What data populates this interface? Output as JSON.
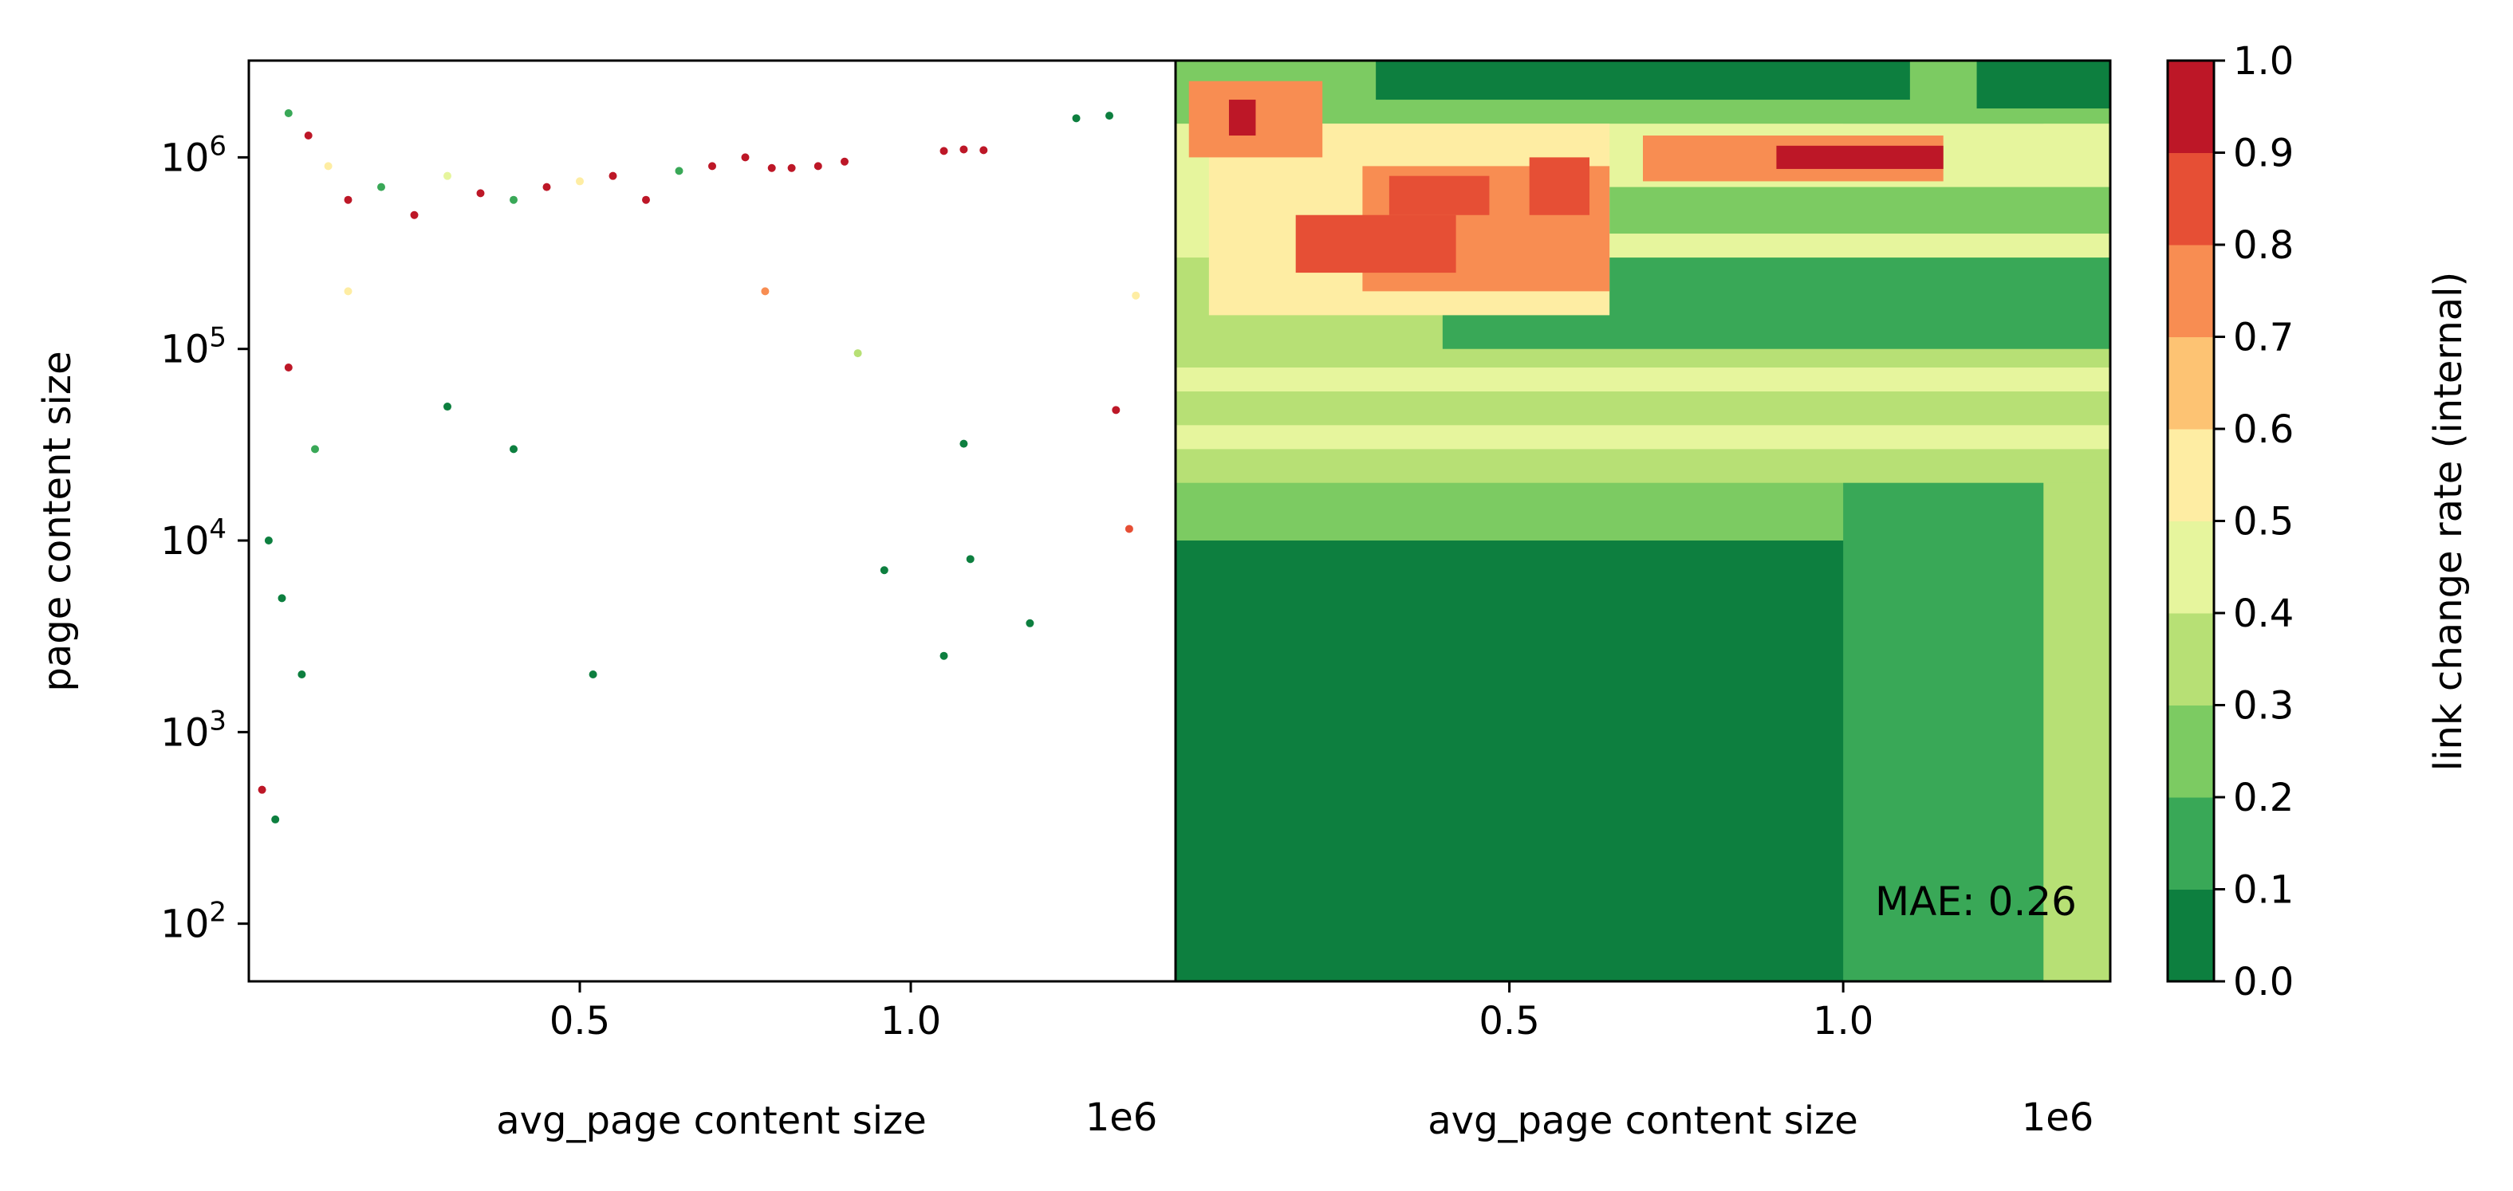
{
  "chart_data": [
    {
      "type": "scatter",
      "xlabel": "avg_page content size",
      "x_offset_label": "1e6",
      "ylabel": "page content size",
      "x_scale": "linear",
      "y_scale": "log",
      "xlim": [
        0,
        1400000
      ],
      "ylim": [
        50,
        3200000
      ],
      "x_ticks": [
        {
          "value": 500000,
          "label": "0.5"
        },
        {
          "value": 1000000,
          "label": "1.0"
        }
      ],
      "y_ticks": [
        {
          "value": 100,
          "label": "10^2",
          "base": "10",
          "exp": "2"
        },
        {
          "value": 1000,
          "label": "10^3",
          "base": "10",
          "exp": "3"
        },
        {
          "value": 10000,
          "label": "10^4",
          "base": "10",
          "exp": "4"
        },
        {
          "value": 100000,
          "label": "10^5",
          "base": "10",
          "exp": "5"
        },
        {
          "value": 1000000,
          "label": "10^6",
          "base": "10",
          "exp": "6"
        }
      ],
      "color_by": "link change rate (internal)",
      "points": [
        {
          "x": 60000,
          "y": 1700000,
          "c": 0.1
        },
        {
          "x": 90000,
          "y": 1300000,
          "c": 0.9
        },
        {
          "x": 120000,
          "y": 900000,
          "c": 0.5
        },
        {
          "x": 150000,
          "y": 600000,
          "c": 0.9
        },
        {
          "x": 200000,
          "y": 700000,
          "c": 0.1
        },
        {
          "x": 250000,
          "y": 500000,
          "c": 0.9
        },
        {
          "x": 300000,
          "y": 800000,
          "c": 0.4
        },
        {
          "x": 350000,
          "y": 650000,
          "c": 0.9
        },
        {
          "x": 400000,
          "y": 600000,
          "c": 0.1
        },
        {
          "x": 450000,
          "y": 700000,
          "c": 0.9
        },
        {
          "x": 500000,
          "y": 750000,
          "c": 0.5
        },
        {
          "x": 550000,
          "y": 800000,
          "c": 0.9
        },
        {
          "x": 600000,
          "y": 600000,
          "c": 0.9
        },
        {
          "x": 650000,
          "y": 850000,
          "c": 0.1
        },
        {
          "x": 700000,
          "y": 900000,
          "c": 0.9
        },
        {
          "x": 750000,
          "y": 1000000,
          "c": 0.9
        },
        {
          "x": 790000,
          "y": 880000,
          "c": 0.95
        },
        {
          "x": 820000,
          "y": 880000,
          "c": 0.95
        },
        {
          "x": 860000,
          "y": 900000,
          "c": 0.95
        },
        {
          "x": 900000,
          "y": 950000,
          "c": 0.95
        },
        {
          "x": 1050000,
          "y": 1080000,
          "c": 0.95
        },
        {
          "x": 1080000,
          "y": 1100000,
          "c": 0.95
        },
        {
          "x": 1110000,
          "y": 1090000,
          "c": 0.95
        },
        {
          "x": 1250000,
          "y": 1600000,
          "c": 0.05
        },
        {
          "x": 1300000,
          "y": 1650000,
          "c": 0.05
        },
        {
          "x": 1340000,
          "y": 190000,
          "c": 0.5
        },
        {
          "x": 1310000,
          "y": 48000,
          "c": 0.95
        },
        {
          "x": 1330000,
          "y": 11500,
          "c": 0.8
        },
        {
          "x": 1080000,
          "y": 32000,
          "c": 0.05
        },
        {
          "x": 1090000,
          "y": 8000,
          "c": 0.05
        },
        {
          "x": 960000,
          "y": 7000,
          "c": 0.05
        },
        {
          "x": 1050000,
          "y": 2500,
          "c": 0.05
        },
        {
          "x": 1180000,
          "y": 3700,
          "c": 0.05
        },
        {
          "x": 520000,
          "y": 2000,
          "c": 0.05
        },
        {
          "x": 920000,
          "y": 95000,
          "c": 0.35
        },
        {
          "x": 780000,
          "y": 200000,
          "c": 0.75
        },
        {
          "x": 30000,
          "y": 10000,
          "c": 0.05
        },
        {
          "x": 50000,
          "y": 5000,
          "c": 0.05
        },
        {
          "x": 80000,
          "y": 2000,
          "c": 0.05
        },
        {
          "x": 20000,
          "y": 500,
          "c": 0.9
        },
        {
          "x": 40000,
          "y": 350,
          "c": 0.05
        },
        {
          "x": 100000,
          "y": 30000,
          "c": 0.1
        },
        {
          "x": 150000,
          "y": 200000,
          "c": 0.5
        },
        {
          "x": 60000,
          "y": 80000,
          "c": 0.9
        },
        {
          "x": 300000,
          "y": 50000,
          "c": 0.05
        },
        {
          "x": 400000,
          "y": 30000,
          "c": 0.05
        }
      ]
    },
    {
      "type": "heatmap",
      "xlabel": "avg_page content size",
      "x_offset_label": "1e6",
      "x_scale": "linear",
      "y_scale": "log",
      "xlim": [
        0,
        1400000
      ],
      "ylim": [
        50,
        3200000
      ],
      "x_ticks": [
        {
          "value": 500000,
          "label": "0.5"
        },
        {
          "value": 1000000,
          "label": "1.0"
        }
      ],
      "annotation": "MAE: 0.26",
      "regions": [
        {
          "x0": 0,
          "x1": 1400000,
          "y0": 50,
          "y1": 3200000,
          "c": 0.05
        },
        {
          "x0": 0,
          "x1": 1400000,
          "y0": 10000,
          "y1": 3200000,
          "c": 0.25
        },
        {
          "x0": 1000000,
          "x1": 1400000,
          "y0": 50,
          "y1": 3200000,
          "c": 0.15
        },
        {
          "x0": 1300000,
          "x1": 1400000,
          "y0": 50,
          "y1": 3200000,
          "c": 0.35
        },
        {
          "x0": 0,
          "x1": 1400000,
          "y0": 20000,
          "y1": 500000,
          "c": 0.35
        },
        {
          "x0": 0,
          "x1": 1400000,
          "y0": 30000,
          "y1": 40000,
          "c": 0.45
        },
        {
          "x0": 0,
          "x1": 1400000,
          "y0": 60000,
          "y1": 80000,
          "c": 0.42
        },
        {
          "x0": 400000,
          "x1": 1400000,
          "y0": 100000,
          "y1": 300000,
          "c": 0.15
        },
        {
          "x0": 0,
          "x1": 1400000,
          "y0": 300000,
          "y1": 1500000,
          "c": 0.45
        },
        {
          "x0": 600000,
          "x1": 1400000,
          "y0": 400000,
          "y1": 700000,
          "c": 0.2
        },
        {
          "x0": 0,
          "x1": 1400000,
          "y0": 1500000,
          "y1": 3200000,
          "c": 0.25
        },
        {
          "x0": 300000,
          "x1": 1100000,
          "y0": 2000000,
          "y1": 3200000,
          "c": 0.05
        },
        {
          "x0": 1200000,
          "x1": 1400000,
          "y0": 1800000,
          "y1": 3200000,
          "c": 0.05
        },
        {
          "x0": 50000,
          "x1": 650000,
          "y0": 150000,
          "y1": 1500000,
          "c": 0.55
        },
        {
          "x0": 280000,
          "x1": 650000,
          "y0": 200000,
          "y1": 900000,
          "c": 0.75
        },
        {
          "x0": 320000,
          "x1": 470000,
          "y0": 500000,
          "y1": 800000,
          "c": 0.85
        },
        {
          "x0": 530000,
          "x1": 620000,
          "y0": 500000,
          "y1": 1000000,
          "c": 0.85
        },
        {
          "x0": 20000,
          "x1": 220000,
          "y0": 1000000,
          "y1": 2500000,
          "c": 0.75
        },
        {
          "x0": 80000,
          "x1": 120000,
          "y0": 1300000,
          "y1": 2000000,
          "c": 0.9
        },
        {
          "x0": 180000,
          "x1": 420000,
          "y0": 250000,
          "y1": 500000,
          "c": 0.8
        },
        {
          "x0": 700000,
          "x1": 1150000,
          "y0": 750000,
          "y1": 1300000,
          "c": 0.7
        },
        {
          "x0": 900000,
          "x1": 1150000,
          "y0": 870000,
          "y1": 1150000,
          "c": 0.95
        }
      ]
    },
    {
      "type": "colorbar",
      "label": "link change rate (internal)",
      "boundaries": [
        0.0,
        0.1,
        0.2,
        0.3,
        0.4,
        0.5,
        0.6,
        0.7,
        0.8,
        0.9,
        1.0
      ],
      "tick_labels": [
        "0.0",
        "0.1",
        "0.2",
        "0.3",
        "0.4",
        "0.5",
        "0.6",
        "0.7",
        "0.8",
        "0.9",
        "1.0"
      ],
      "colors": [
        "#0d7f3f",
        "#39a857",
        "#7ccb62",
        "#b7e075",
        "#e6f59d",
        "#feeda3",
        "#fdc373",
        "#f88d52",
        "#e64f35",
        "#bd1727"
      ]
    }
  ]
}
